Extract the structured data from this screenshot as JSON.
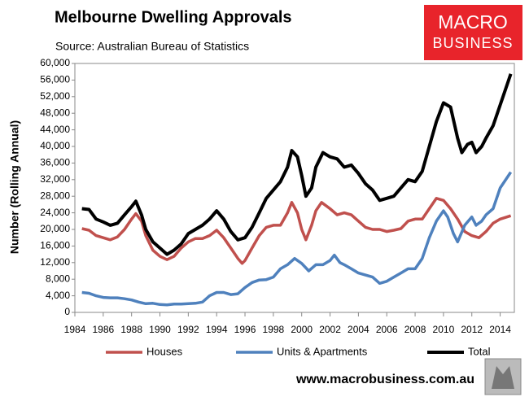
{
  "chart_data": {
    "type": "line",
    "title": "Melbourne Dwelling Approvals",
    "subtitle": "Source: Australian Bureau of Statistics",
    "y_label": "Number (Rolling Annual)",
    "logo": [
      "MACRO",
      "BUSINESS"
    ],
    "website": "www.macrobusiness.com.au",
    "xlim": [
      1984,
      2015
    ],
    "xticks": [
      1984,
      1986,
      1988,
      1990,
      1992,
      1994,
      1996,
      1998,
      2000,
      2002,
      2004,
      2006,
      2008,
      2010,
      2012,
      2014
    ],
    "ylim": [
      0,
      60000
    ],
    "yticks": [
      0,
      {
        "value": 4000,
        "label": "4,000"
      },
      {
        "value": 8000,
        "label": "8,000"
      },
      {
        "value": 12000,
        "label": "12,000"
      },
      {
        "value": 16000,
        "label": "16,000"
      },
      {
        "value": 20000,
        "label": "20,000"
      },
      {
        "value": 24000,
        "label": "24,000"
      },
      {
        "value": 28000,
        "label": "28,000"
      },
      {
        "value": 32000,
        "label": "32,000"
      },
      {
        "value": 36000,
        "label": "36,000"
      },
      {
        "value": 40000,
        "label": "40,000"
      },
      {
        "value": 44000,
        "label": "44,000"
      },
      {
        "value": 48000,
        "label": "48,000"
      },
      {
        "value": 52000,
        "label": "52,000"
      },
      {
        "value": 56000,
        "label": "56,000"
      },
      {
        "value": 60000,
        "label": "60,000"
      }
    ],
    "grid": false,
    "series": [
      {
        "name": "Houses",
        "color": "#c0504d",
        "width": 3.5,
        "x": [
          1984.5,
          1985,
          1985.5,
          1986,
          1986.5,
          1987,
          1987.5,
          1988,
          1988.3,
          1988.7,
          1989,
          1989.5,
          1990,
          1990.5,
          1991,
          1991.5,
          1992,
          1992.5,
          1993,
          1993.5,
          1994,
          1994.5,
          1995,
          1995.5,
          1995.8,
          1996,
          1996.5,
          1997,
          1997.5,
          1998,
          1998.5,
          1999,
          1999.3,
          1999.7,
          2000,
          2000.3,
          2000.7,
          2001,
          2001.4,
          2002,
          2002.5,
          2003,
          2003.5,
          2004,
          2004.5,
          2005,
          2005.5,
          2006,
          2006.5,
          2007,
          2007.5,
          2008,
          2008.5,
          2009,
          2009.5,
          2010,
          2010.5,
          2011,
          2011.5,
          2012,
          2012.5,
          2013,
          2013.5,
          2014,
          2014.75
        ],
        "values": [
          20200,
          19800,
          18500,
          18000,
          17500,
          18200,
          20000,
          22500,
          23800,
          22000,
          18500,
          15000,
          13500,
          12700,
          13500,
          15500,
          17000,
          17800,
          17800,
          18500,
          19800,
          18000,
          15500,
          13000,
          11800,
          12500,
          15500,
          18500,
          20500,
          21000,
          21000,
          24000,
          26500,
          24000,
          20000,
          17500,
          21000,
          24500,
          26500,
          25000,
          23500,
          24000,
          23500,
          22000,
          20500,
          20000,
          20000,
          19500,
          19800,
          20200,
          22000,
          22500,
          22500,
          25000,
          27500,
          27000,
          25000,
          22500,
          19500,
          18500,
          18000,
          19500,
          21500,
          22500,
          23300
        ]
      },
      {
        "name": "Units & Apartments",
        "color": "#4f81bd",
        "width": 3.5,
        "x": [
          1984.5,
          1985,
          1985.5,
          1986,
          1986.5,
          1987,
          1987.5,
          1988,
          1988.5,
          1989,
          1989.5,
          1990,
          1990.5,
          1991,
          1991.5,
          1992,
          1992.5,
          1993,
          1993.5,
          1994,
          1994.5,
          1995,
          1995.5,
          1996,
          1996.5,
          1997,
          1997.5,
          1998,
          1998.5,
          1999,
          1999.5,
          2000,
          2000.5,
          2001,
          2001.5,
          2002,
          2002.3,
          2002.7,
          2003,
          2003.5,
          2004,
          2004.5,
          2005,
          2005.5,
          2006,
          2006.5,
          2007,
          2007.5,
          2008,
          2008.5,
          2009,
          2009.5,
          2010,
          2010.3,
          2010.7,
          2011,
          2011.5,
          2012,
          2012.3,
          2012.7,
          2013,
          2013.5,
          2014,
          2014.75
        ],
        "values": [
          4800,
          4600,
          4000,
          3600,
          3500,
          3500,
          3300,
          3000,
          2500,
          2100,
          2200,
          1900,
          1800,
          2000,
          2000,
          2100,
          2200,
          2500,
          4000,
          4800,
          4800,
          4300,
          4500,
          6000,
          7200,
          7800,
          7900,
          8500,
          10500,
          11500,
          13000,
          11800,
          10000,
          11500,
          11500,
          12500,
          13800,
          12000,
          11500,
          10500,
          9500,
          9000,
          8500,
          7000,
          7500,
          8500,
          9500,
          10500,
          10500,
          13000,
          18000,
          22000,
          24500,
          23000,
          19000,
          17000,
          21000,
          23000,
          21000,
          22000,
          23500,
          25000,
          30000,
          33800
        ]
      },
      {
        "name": "Total",
        "color": "#000000",
        "width": 4,
        "x": [
          1984.5,
          1985,
          1985.5,
          1986,
          1986.5,
          1987,
          1987.5,
          1988,
          1988.3,
          1988.7,
          1989,
          1989.5,
          1990,
          1990.5,
          1991,
          1991.5,
          1992,
          1992.5,
          1993,
          1993.5,
          1994,
          1994.5,
          1995,
          1995.5,
          1996,
          1996.5,
          1997,
          1997.5,
          1998,
          1998.5,
          1999,
          1999.3,
          1999.7,
          2000,
          2000.3,
          2000.7,
          2001,
          2001.5,
          2002,
          2002.5,
          2003,
          2003.5,
          2004,
          2004.5,
          2005,
          2005.5,
          2006,
          2006.5,
          2007,
          2007.5,
          2008,
          2008.5,
          2009,
          2009.5,
          2010,
          2010.5,
          2011,
          2011.3,
          2011.7,
          2012,
          2012.3,
          2012.7,
          2013,
          2013.5,
          2014,
          2014.5,
          2014.75
        ],
        "values": [
          25000,
          24800,
          22500,
          21800,
          21000,
          21500,
          23500,
          25500,
          26800,
          23500,
          20000,
          17000,
          15500,
          14000,
          15000,
          16500,
          19000,
          20000,
          21000,
          22500,
          24500,
          22500,
          19500,
          17500,
          18000,
          20500,
          24000,
          27500,
          29500,
          31500,
          35000,
          39000,
          37500,
          33000,
          28000,
          30000,
          35000,
          38500,
          37500,
          37000,
          35000,
          35500,
          33500,
          31000,
          29500,
          27000,
          27500,
          28000,
          30000,
          32000,
          31500,
          34000,
          40000,
          46000,
          50500,
          49500,
          42000,
          38500,
          40500,
          41000,
          38500,
          40000,
          42000,
          45000,
          50000,
          55000,
          57500
        ]
      }
    ]
  }
}
